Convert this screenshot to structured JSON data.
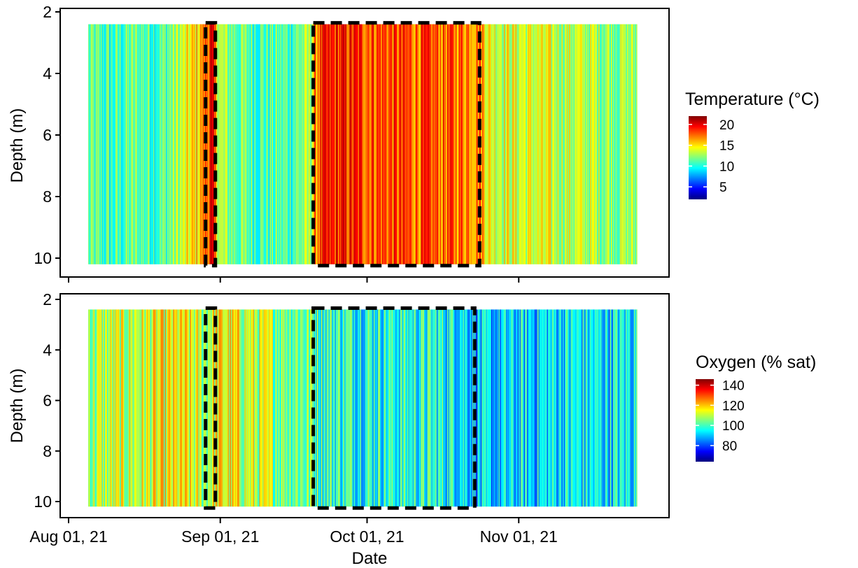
{
  "chart_data": [
    {
      "type": "heatmap",
      "panel": "top",
      "xlabel": "",
      "ylabel": "Depth (m)",
      "x_range": [
        "2021-08-01",
        "2021-11-30"
      ],
      "x_data_range": [
        "2021-08-05",
        "2021-11-25"
      ],
      "y_range": [
        2,
        10
      ],
      "y_reversed": true,
      "y_ticks": [
        "2",
        "4",
        "6",
        "8",
        "10"
      ],
      "depth_data_range": [
        2.4,
        10.2
      ],
      "legend": {
        "title": "Temperature (°C)",
        "ticks": [
          "20",
          "15",
          "10",
          "5"
        ],
        "tick_values": [
          20,
          15,
          10,
          5
        ],
        "range": [
          2,
          22
        ],
        "colors": [
          "#00007f",
          "#0000ff",
          "#007fff",
          "#00ffff",
          "#7fff7f",
          "#ffff00",
          "#ff7f00",
          "#ff0000",
          "#7f0000"
        ]
      },
      "highlight_boxes": [
        {
          "start": "2021-08-29",
          "end": "2021-08-31"
        },
        {
          "start": "2021-09-20",
          "end": "2021-10-24"
        }
      ],
      "value_profile": [
        {
          "date": "2021-08-05",
          "value": 11.0
        },
        {
          "date": "2021-08-10",
          "value": 10.5
        },
        {
          "date": "2021-08-15",
          "value": 11.5
        },
        {
          "date": "2021-08-20",
          "value": 11.0
        },
        {
          "date": "2021-08-24",
          "value": 13.0
        },
        {
          "date": "2021-08-28",
          "value": 16.0
        },
        {
          "date": "2021-08-30",
          "value": 19.5
        },
        {
          "date": "2021-09-01",
          "value": 12.5
        },
        {
          "date": "2021-09-05",
          "value": 11.5
        },
        {
          "date": "2021-09-10",
          "value": 11.0
        },
        {
          "date": "2021-09-15",
          "value": 11.0
        },
        {
          "date": "2021-09-19",
          "value": 12.5
        },
        {
          "date": "2021-09-21",
          "value": 18.0
        },
        {
          "date": "2021-09-25",
          "value": 18.8
        },
        {
          "date": "2021-10-01",
          "value": 18.3
        },
        {
          "date": "2021-10-08",
          "value": 17.8
        },
        {
          "date": "2021-10-15",
          "value": 17.6
        },
        {
          "date": "2021-10-24",
          "value": 17.4
        },
        {
          "date": "2021-10-26",
          "value": 14.2
        },
        {
          "date": "2021-11-01",
          "value": 13.8
        },
        {
          "date": "2021-11-10",
          "value": 13.3
        },
        {
          "date": "2021-11-18",
          "value": 12.8
        },
        {
          "date": "2021-11-25",
          "value": 12.3
        }
      ]
    },
    {
      "type": "heatmap",
      "panel": "bottom",
      "xlabel": "Date",
      "ylabel": "Depth (m)",
      "x_range": [
        "2021-08-01",
        "2021-11-30"
      ],
      "x_data_range": [
        "2021-08-05",
        "2021-11-25"
      ],
      "x_ticks": [
        {
          "date": "2021-08-01",
          "label": "Aug 01, 21"
        },
        {
          "date": "2021-09-01",
          "label": "Sep 01, 21"
        },
        {
          "date": "2021-10-01",
          "label": "Oct 01, 21"
        },
        {
          "date": "2021-11-01",
          "label": "Nov 01, 21"
        }
      ],
      "y_range": [
        2,
        10
      ],
      "y_reversed": true,
      "y_ticks": [
        "2",
        "4",
        "6",
        "8",
        "10"
      ],
      "depth_data_range": [
        2.4,
        10.2
      ],
      "legend": {
        "title": "Oxygen (% sat)",
        "ticks": [
          "140",
          "120",
          "100",
          "80"
        ],
        "tick_values": [
          140,
          120,
          100,
          80
        ],
        "range": [
          64,
          146
        ],
        "colors": [
          "#00007f",
          "#0000ff",
          "#007fff",
          "#00ffff",
          "#7fff7f",
          "#ffff00",
          "#ff7f00",
          "#ff0000",
          "#7f0000"
        ]
      },
      "highlight_boxes": [
        {
          "start": "2021-08-29",
          "end": "2021-08-31"
        },
        {
          "start": "2021-09-20",
          "end": "2021-10-23"
        }
      ],
      "value_profile": [
        {
          "date": "2021-08-05",
          "value": 108
        },
        {
          "date": "2021-08-12",
          "value": 110
        },
        {
          "date": "2021-08-18",
          "value": 112
        },
        {
          "date": "2021-08-24",
          "value": 114
        },
        {
          "date": "2021-08-29",
          "value": 108
        },
        {
          "date": "2021-08-31",
          "value": 116
        },
        {
          "date": "2021-09-05",
          "value": 112
        },
        {
          "date": "2021-09-12",
          "value": 108
        },
        {
          "date": "2021-09-19",
          "value": 104
        },
        {
          "date": "2021-09-22",
          "value": 100
        },
        {
          "date": "2021-10-01",
          "value": 98
        },
        {
          "date": "2021-10-10",
          "value": 97
        },
        {
          "date": "2021-10-20",
          "value": 96
        },
        {
          "date": "2021-10-25",
          "value": 88
        },
        {
          "date": "2021-11-01",
          "value": 91
        },
        {
          "date": "2021-11-10",
          "value": 94
        },
        {
          "date": "2021-11-18",
          "value": 93
        },
        {
          "date": "2021-11-25",
          "value": 95
        }
      ]
    }
  ]
}
